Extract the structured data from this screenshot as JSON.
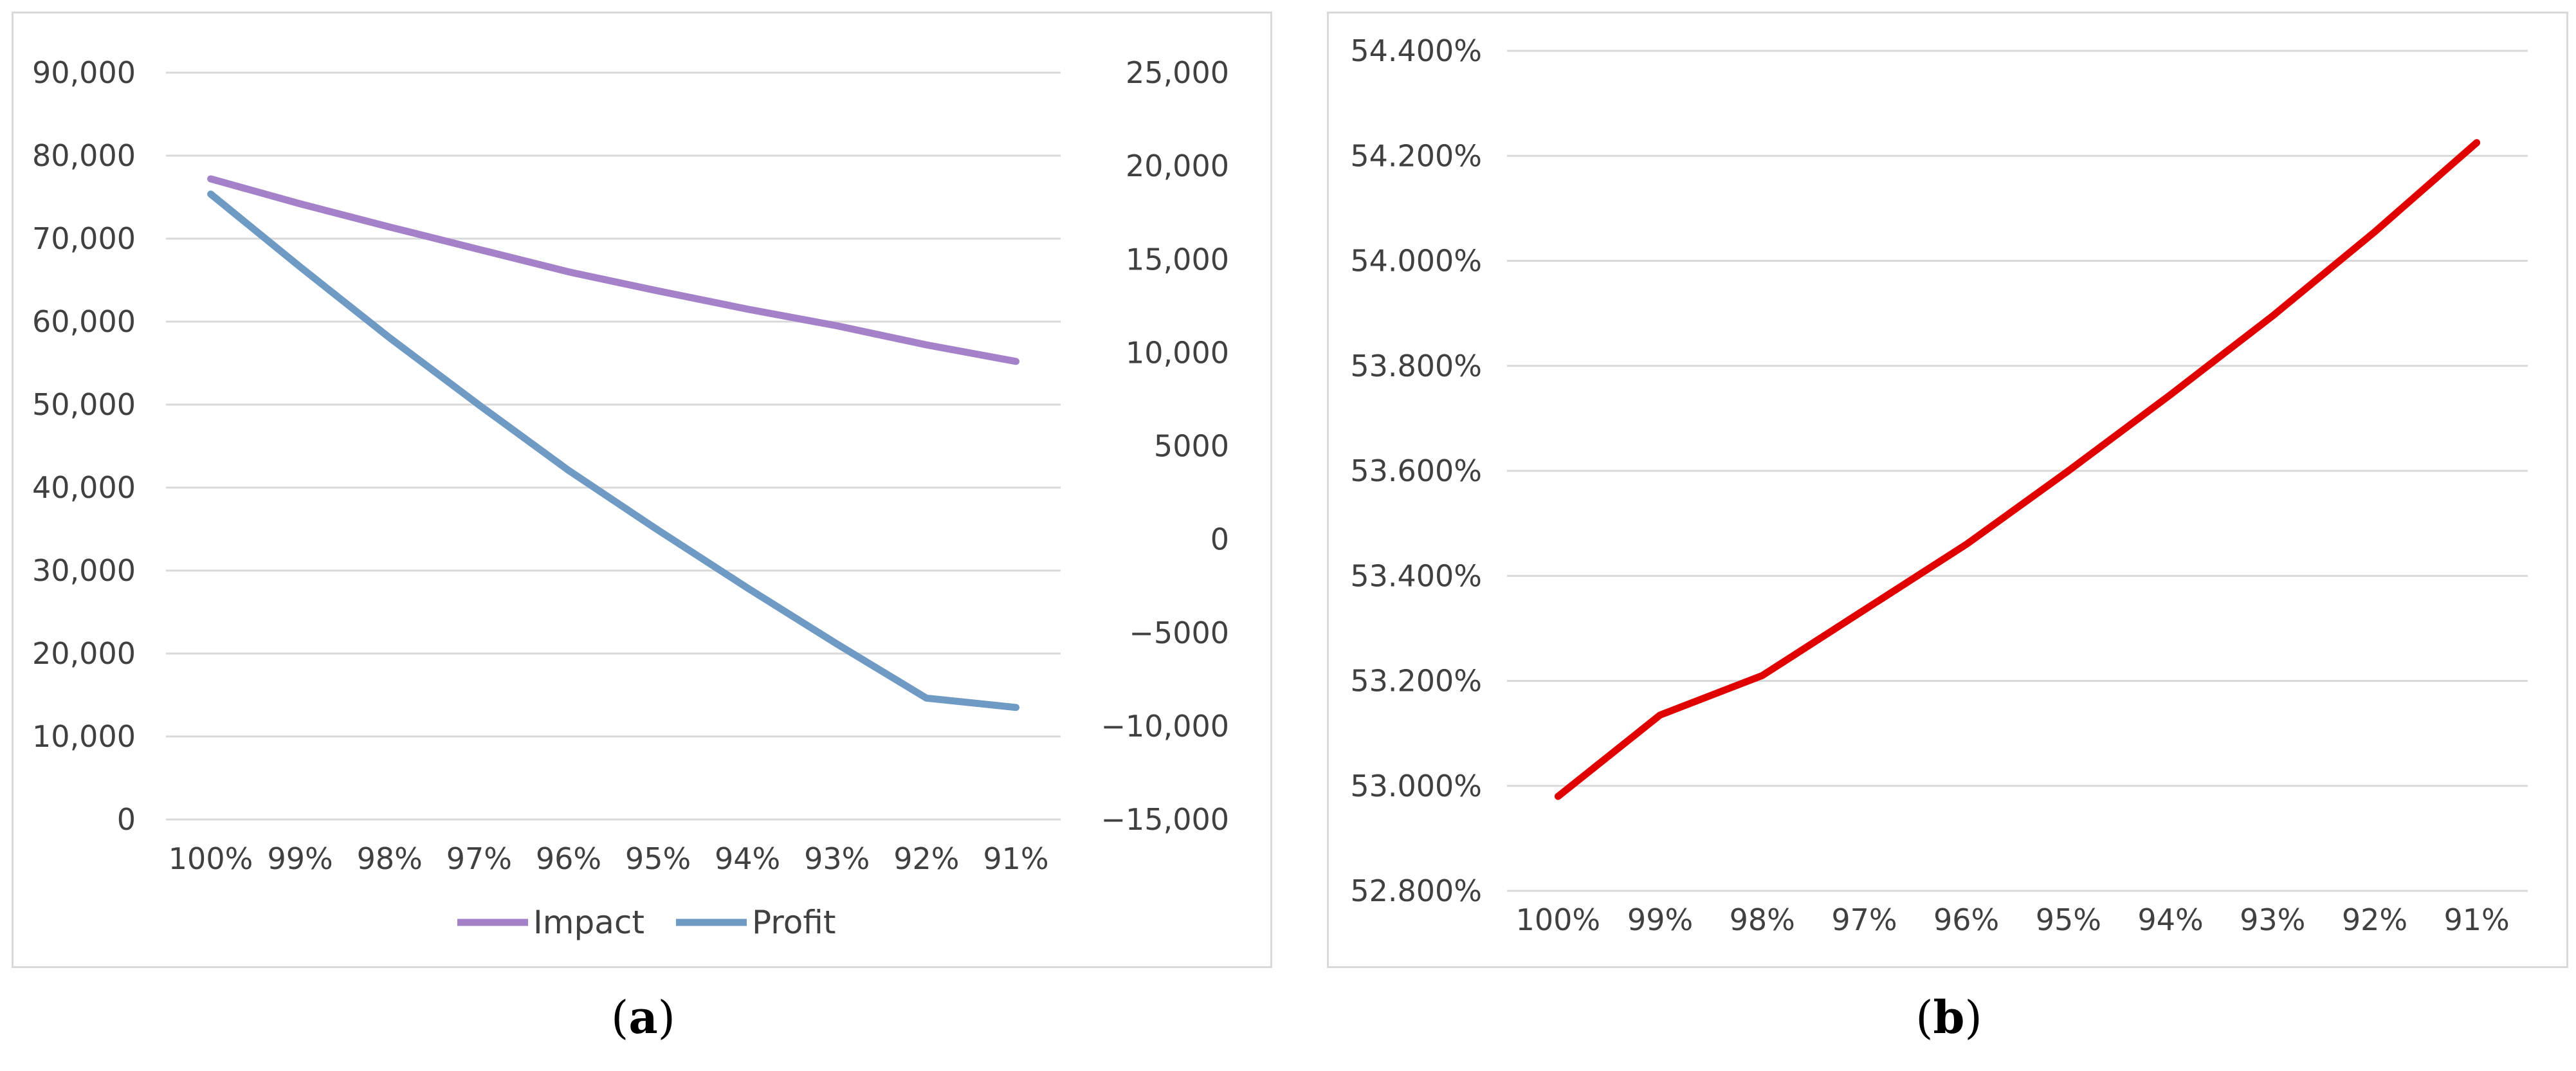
{
  "colors": {
    "impact": "#a481c8",
    "profit": "#6f9ac4",
    "ratio": "#e00000",
    "grid": "#d9d9d9",
    "text": "#404040"
  },
  "captions": {
    "a": "a",
    "b": "b"
  },
  "chart_data": [
    {
      "type": "line",
      "categories": [
        "100%",
        "99%",
        "98%",
        "97%",
        "96%",
        "95%",
        "94%",
        "93%",
        "92%",
        "91%"
      ],
      "y_left": {
        "ylim": [
          0,
          90000
        ],
        "ticks": [
          "0",
          "10,000",
          "20,000",
          "30,000",
          "40,000",
          "50,000",
          "60,000",
          "70,000",
          "80,000",
          "90,000"
        ]
      },
      "y_right": {
        "ylim": [
          -15000,
          25000
        ],
        "ticks": [
          "−15,000",
          "−10,000",
          "−5000",
          "0",
          "5000",
          "10,000",
          "15,000",
          "20,000",
          "25,000"
        ]
      },
      "series": [
        {
          "name": "Impact",
          "axis": "left",
          "values": [
            77200,
            74200,
            71400,
            68700,
            66000,
            63700,
            61500,
            59500,
            57200,
            55200
          ]
        },
        {
          "name": "Profit",
          "axis": "right",
          "values": [
            18500,
            14600,
            10800,
            7200,
            3700,
            500,
            -2600,
            -5600,
            -8500,
            -9000
          ]
        }
      ],
      "legend": "bottom",
      "grid": true
    },
    {
      "type": "line",
      "categories": [
        "100%",
        "99%",
        "98%",
        "97%",
        "96%",
        "95%",
        "94%",
        "93%",
        "92%",
        "91%"
      ],
      "ylim": [
        52.8,
        54.4
      ],
      "yticks": [
        "52.800%",
        "53.000%",
        "53.200%",
        "53.400%",
        "53.600%",
        "53.800%",
        "54.000%",
        "54.200%",
        "54.400%"
      ],
      "series": [
        {
          "values": [
            52.98,
            53.135,
            53.21,
            53.335,
            53.46,
            53.6,
            53.745,
            53.895,
            54.055,
            54.225
          ]
        }
      ],
      "grid": true
    }
  ]
}
